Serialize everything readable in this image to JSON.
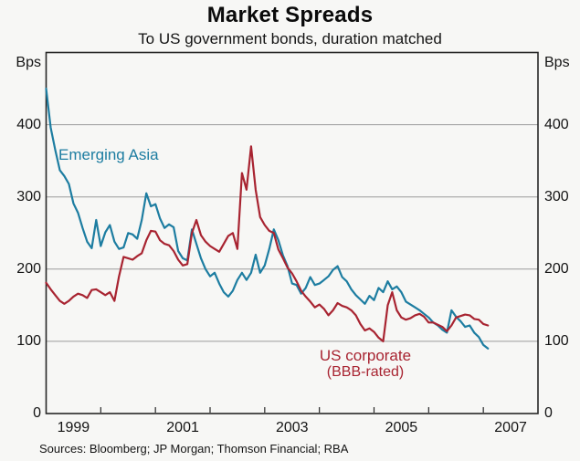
{
  "header": {
    "title": "Market Spreads",
    "subtitle": "To US government bonds, duration matched"
  },
  "axes": {
    "unit_label_left": "Bps",
    "unit_label_right": "Bps",
    "y_ticks": [
      0,
      100,
      200,
      300,
      400
    ],
    "x_label_years": [
      1999,
      2001,
      2003,
      2005,
      2007
    ],
    "x_tick_years": [
      2000,
      2001,
      2002,
      2003,
      2004,
      2005,
      2006,
      2007
    ]
  },
  "annotations": {
    "emerging_asia_label": "Emerging Asia",
    "us_corporate_label_line1": "US corporate",
    "us_corporate_label_line2": "(BBB-rated)"
  },
  "footer": {
    "sources": "Sources: Bloomberg; JP Morgan; Thomson Financial; RBA"
  },
  "colors": {
    "emerging_asia": "#1d7da1",
    "us_corporate": "#a82431",
    "grid": "#9b9b9b",
    "frame": "#262626",
    "background": "#f7f7f5"
  },
  "chart_data": {
    "type": "line",
    "title": "Market Spreads",
    "subtitle": "To US government bonds, duration matched",
    "ylabel": "Bps",
    "ylim": [
      0,
      500
    ],
    "xlim": [
      1999,
      2008
    ],
    "grid": "horizontal only, at 100/200/300/400",
    "legend_position": "inline text labels on lines",
    "frequency": "monthly",
    "x_start": "1999-01",
    "x_end": "2007-02",
    "gridlines": [
      100,
      200,
      300,
      400
    ],
    "series": [
      {
        "name": "Emerging Asia",
        "color": "#1d7da1",
        "values": [
          450,
          396,
          365,
          337,
          329,
          318,
          291,
          278,
          257,
          238,
          229,
          268,
          232,
          251,
          261,
          238,
          228,
          230,
          250,
          248,
          242,
          268,
          305,
          287,
          290,
          270,
          257,
          262,
          258,
          225,
          215,
          212,
          255,
          235,
          215,
          200,
          190,
          195,
          180,
          168,
          162,
          170,
          185,
          195,
          185,
          195,
          220,
          195,
          205,
          228,
          255,
          240,
          219,
          204,
          180,
          178,
          166,
          174,
          189,
          178,
          180,
          185,
          190,
          199,
          204,
          189,
          183,
          172,
          164,
          158,
          152,
          163,
          157,
          174,
          168,
          183,
          172,
          176,
          168,
          155,
          151,
          147,
          143,
          138,
          133,
          126,
          122,
          116,
          112,
          143,
          134,
          128,
          120,
          122,
          112,
          106,
          95,
          90
        ]
      },
      {
        "name": "US corporate (BBB-rated)",
        "color": "#a82431",
        "values": [
          181,
          172,
          164,
          156,
          152,
          156,
          162,
          166,
          164,
          160,
          171,
          172,
          168,
          164,
          168,
          156,
          190,
          217,
          215,
          213,
          218,
          222,
          240,
          253,
          252,
          240,
          235,
          233,
          225,
          213,
          205,
          207,
          250,
          268,
          247,
          238,
          232,
          228,
          224,
          235,
          246,
          250,
          228,
          333,
          310,
          370,
          310,
          272,
          261,
          253,
          250,
          227,
          215,
          202,
          194,
          183,
          170,
          162,
          155,
          147,
          151,
          145,
          136,
          143,
          153,
          149,
          147,
          143,
          136,
          124,
          115,
          118,
          113,
          105,
          100,
          150,
          168,
          143,
          133,
          130,
          132,
          136,
          138,
          134,
          126,
          126,
          123,
          120,
          114,
          122,
          133,
          135,
          137,
          136,
          131,
          130,
          124,
          122
        ]
      }
    ]
  }
}
